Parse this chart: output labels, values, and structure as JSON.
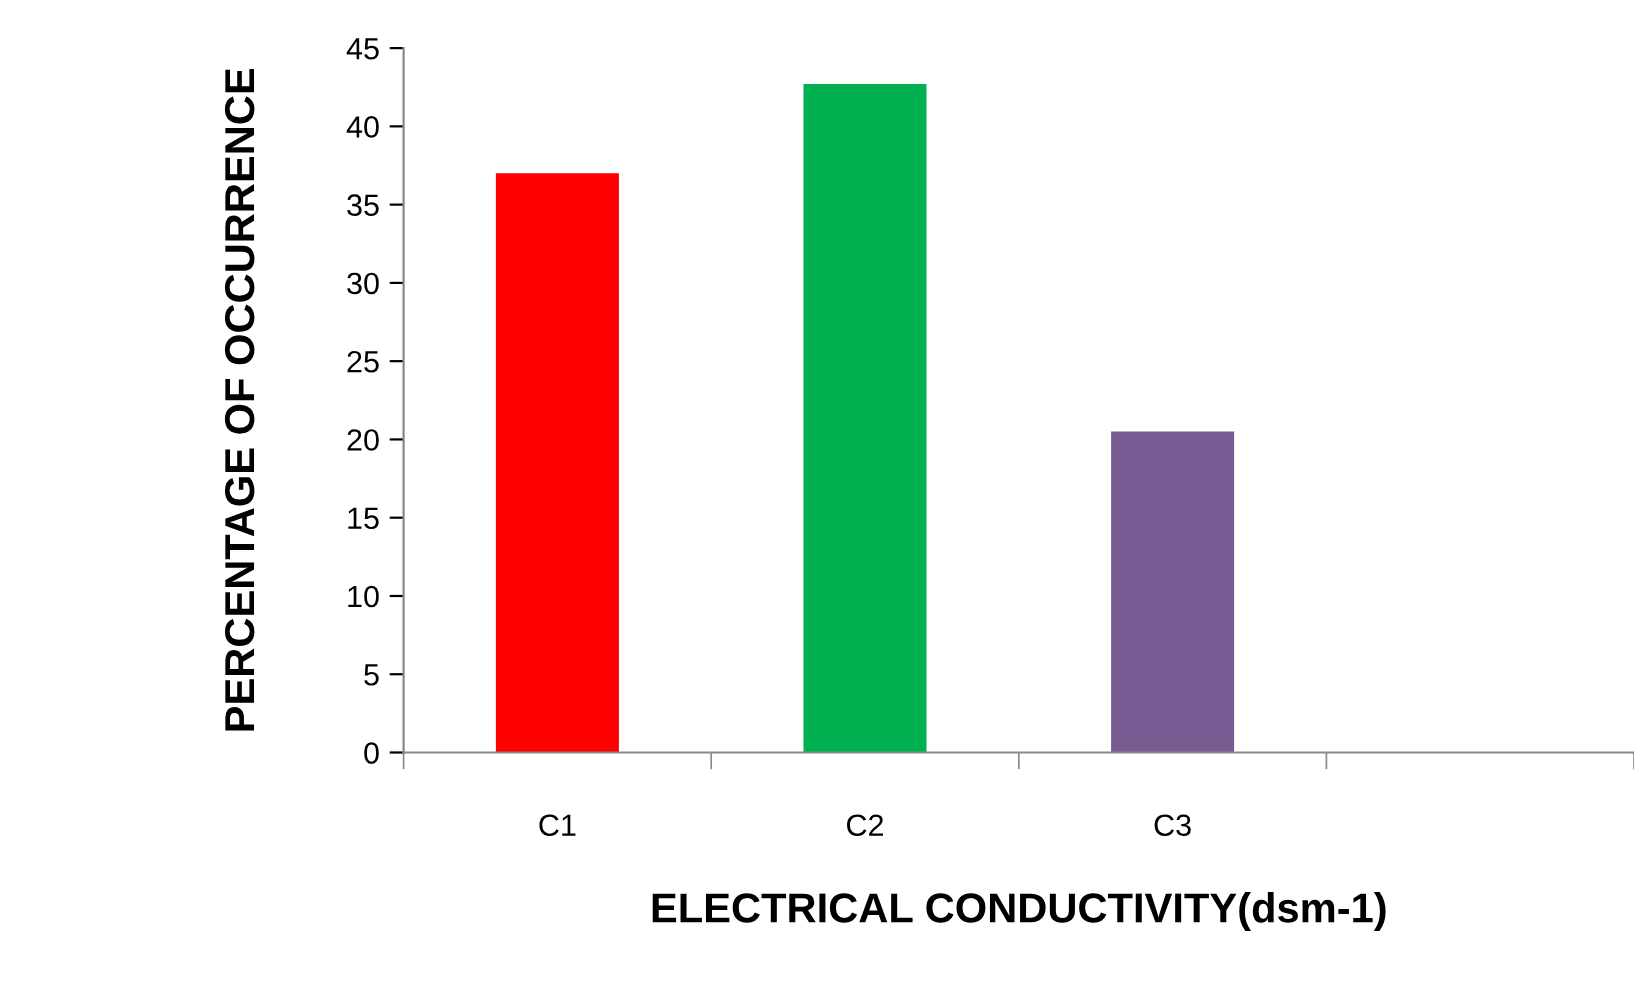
{
  "chart_data": {
    "type": "bar",
    "xlabel": "ELECTRICAL CONDUCTIVITY(dsm-1)",
    "ylabel": "PERCENTAGE OF OCCURRENCE",
    "categories": [
      "C1",
      "C2",
      "C3",
      null
    ],
    "values": [
      37,
      42.7,
      20.5,
      null
    ],
    "colors": [
      "#ff0000",
      "#00b050",
      "#765b93",
      "#765b93"
    ],
    "ylim": [
      0,
      45
    ],
    "yticks": [
      0,
      5,
      10,
      15,
      20,
      25,
      30,
      35,
      40,
      45
    ],
    "grid": false,
    "legend": false
  }
}
